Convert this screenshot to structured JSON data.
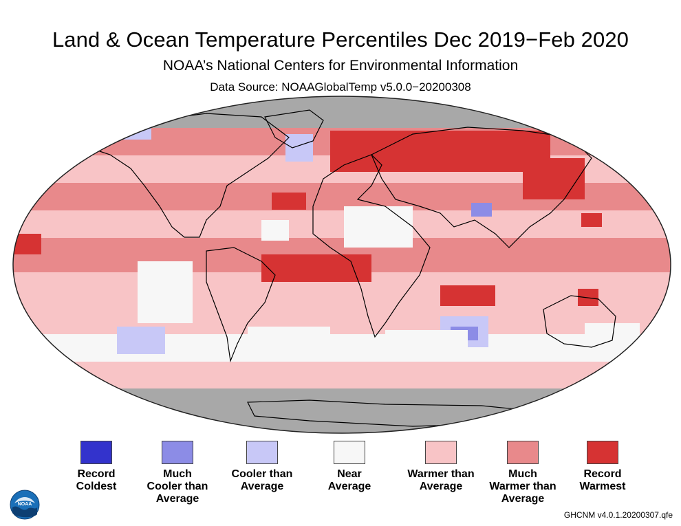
{
  "header": {
    "title": "Land & Ocean Temperature Percentiles Dec 2019−Feb 2020",
    "subtitle": "NOAA’s National Centers for Environmental Information",
    "source": "Data Source: NOAAGlobalTemp v5.0.0−20200308"
  },
  "colors": {
    "no_data": "#a8a8a8",
    "record_coldest": "#3333cc",
    "much_cooler": "#8c8ce6",
    "cooler": "#c8c8f7",
    "near": "#f7f7f7",
    "warmer": "#f8c4c6",
    "much_warmer": "#e8898b",
    "record_warmest": "#d63333",
    "ocean_base": "#f3b0b4"
  },
  "legend": [
    {
      "label": "Record\nColdest",
      "color": "#3333cc"
    },
    {
      "label": "Much\nCooler than\nAverage",
      "color": "#8c8ce6"
    },
    {
      "label": "Cooler than\nAverage",
      "color": "#c8c8f7"
    },
    {
      "label": "Near\nAverage",
      "color": "#f7f7f7"
    },
    {
      "label": "Warmer than\nAverage",
      "color": "#f8c4c6"
    },
    {
      "label": "Much\nWarmer than\nAverage",
      "color": "#e8898b"
    },
    {
      "label": "Record\nWarmest",
      "color": "#d63333"
    }
  ],
  "footer": "GHCNM v4.0.1.20200307.qfe",
  "logo": {
    "text": "NOAA",
    "icon": "noaa-logo-icon"
  }
}
